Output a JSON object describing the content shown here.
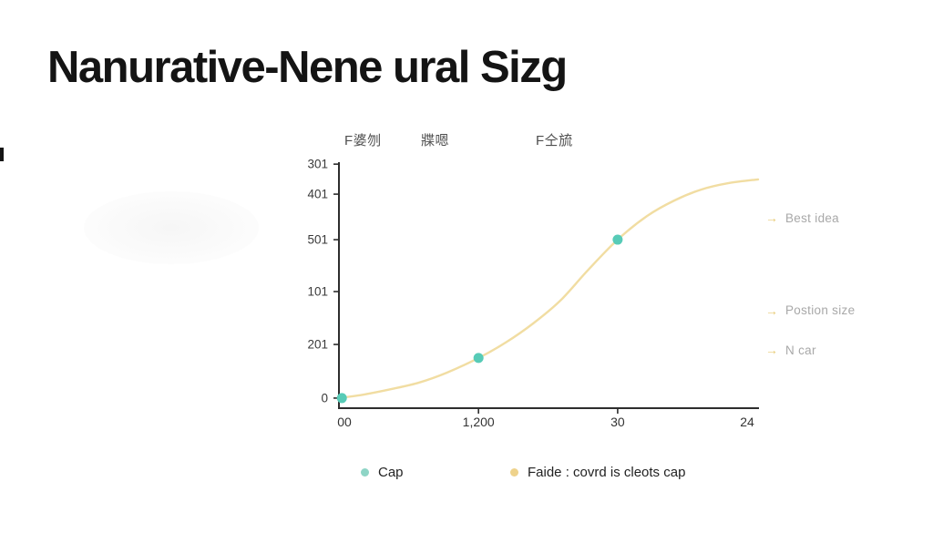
{
  "page": {
    "title": "Nanurative-Nene ural Sizg"
  },
  "icons": {
    "arrow": "→"
  },
  "chart_data": {
    "type": "line",
    "title": "",
    "header_labels": [
      "F婆刎",
      "牃嗯",
      "F仝旈"
    ],
    "x_tick_labels": [
      "00",
      "1,200",
      "30",
      "24"
    ],
    "x_tick_pos": [
      0.013,
      0.333,
      0.665,
      0.974
    ],
    "x_tick_marks": [
      false,
      true,
      true,
      false
    ],
    "y_tick_labels": [
      "301",
      "401",
      "501",
      "101",
      "201",
      "0"
    ],
    "y_tick_pos": [
      0.992,
      0.87,
      0.685,
      0.474,
      0.259,
      0.041
    ],
    "grid": false,
    "legend_position": "bottom",
    "axis_color": "#2d2d2d",
    "series": [
      {
        "name": "Cap",
        "kind": "scatter",
        "color": "#57cbb7",
        "points": [
          [
            0.007,
            0.041
          ],
          [
            0.333,
            0.204
          ],
          [
            0.665,
            0.685
          ]
        ]
      },
      {
        "name": "Faide : covrd is cleots cap",
        "kind": "line",
        "color": "#f1dda2",
        "points": [
          [
            0.0,
            0.041
          ],
          [
            0.061,
            0.056
          ],
          [
            0.126,
            0.078
          ],
          [
            0.191,
            0.104
          ],
          [
            0.257,
            0.144
          ],
          [
            0.333,
            0.204
          ],
          [
            0.398,
            0.267
          ],
          [
            0.463,
            0.344
          ],
          [
            0.528,
            0.437
          ],
          [
            0.593,
            0.559
          ],
          [
            0.665,
            0.685
          ],
          [
            0.735,
            0.781
          ],
          [
            0.8,
            0.844
          ],
          [
            0.865,
            0.889
          ],
          [
            0.93,
            0.915
          ],
          [
            1.0,
            0.93
          ]
        ]
      }
    ],
    "annotations": [
      {
        "label": "Best idea",
        "pos": 0.77
      },
      {
        "label": "Postion size",
        "pos": 0.393
      },
      {
        "label": "N car",
        "pos": 0.233
      }
    ],
    "legend": [
      {
        "label": "Cap",
        "color": "#8ed5c6"
      },
      {
        "label": "Faide : covrd is cleots cap",
        "color": "#eed28b"
      }
    ],
    "layout": {
      "plot_left": 372,
      "plot_right": 832,
      "plot_top": 178,
      "plot_bottom": 448
    }
  }
}
